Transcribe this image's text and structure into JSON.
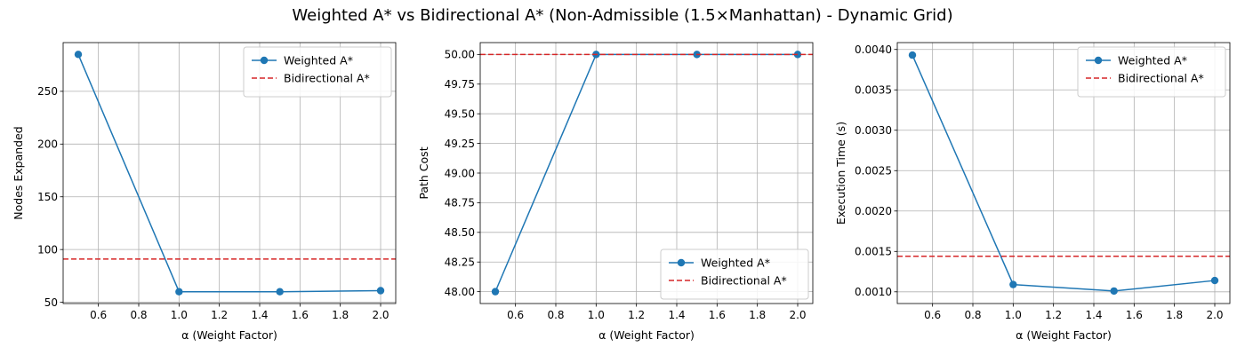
{
  "figure": {
    "title": "Weighted A* vs Bidirectional A* (Non-Admissible (1.5×Manhattan) - Dynamic Grid)"
  },
  "colors": {
    "weighted": "#1f77b4",
    "bidirectional": "#d62728",
    "grid": "#b0b0b0"
  },
  "chart_data": [
    {
      "type": "line",
      "xlabel": "α (Weight Factor)",
      "ylabel": "Nodes Expanded",
      "xlim": [
        0.425,
        2.075
      ],
      "ylim": [
        48.8,
        296.2
      ],
      "xticks": [
        0.6,
        0.8,
        1.0,
        1.2,
        1.4,
        1.6,
        1.8,
        2.0
      ],
      "xtick_labels": [
        "0.6",
        "0.8",
        "1.0",
        "1.2",
        "1.4",
        "1.6",
        "1.8",
        "2.0"
      ],
      "yticks": [
        50,
        100,
        150,
        200,
        250
      ],
      "ytick_labels": [
        "50",
        "100",
        "150",
        "200",
        "250"
      ],
      "grid": true,
      "legend_position": "top-right",
      "series": [
        {
          "name": "Weighted A*",
          "style": "line-marker",
          "x": [
            0.5,
            1.0,
            1.5,
            2.0
          ],
          "y": [
            285,
            60,
            60,
            61
          ]
        },
        {
          "name": "Bidirectional A*",
          "style": "hline-dashed",
          "y": 91
        }
      ]
    },
    {
      "type": "line",
      "xlabel": "α (Weight Factor)",
      "ylabel": "Path Cost",
      "xlim": [
        0.425,
        2.075
      ],
      "ylim": [
        47.9,
        50.1
      ],
      "xticks": [
        0.6,
        0.8,
        1.0,
        1.2,
        1.4,
        1.6,
        1.8,
        2.0
      ],
      "xtick_labels": [
        "0.6",
        "0.8",
        "1.0",
        "1.2",
        "1.4",
        "1.6",
        "1.8",
        "2.0"
      ],
      "yticks": [
        48.0,
        48.25,
        48.5,
        48.75,
        49.0,
        49.25,
        49.5,
        49.75,
        50.0
      ],
      "ytick_labels": [
        "48.00",
        "48.25",
        "48.50",
        "48.75",
        "49.00",
        "49.25",
        "49.50",
        "49.75",
        "50.00"
      ],
      "grid": true,
      "legend_position": "bottom-right",
      "series": [
        {
          "name": "Weighted A*",
          "style": "line-marker",
          "x": [
            0.5,
            1.0,
            1.5,
            2.0
          ],
          "y": [
            48,
            50,
            50,
            50
          ]
        },
        {
          "name": "Bidirectional A*",
          "style": "hline-dashed",
          "y": 50
        }
      ]
    },
    {
      "type": "line",
      "xlabel": "α (Weight Factor)",
      "ylabel": "Execution Time (s)",
      "xlim": [
        0.425,
        2.075
      ],
      "ylim": [
        0.000855,
        0.004085
      ],
      "xticks": [
        0.6,
        0.8,
        1.0,
        1.2,
        1.4,
        1.6,
        1.8,
        2.0
      ],
      "xtick_labels": [
        "0.6",
        "0.8",
        "1.0",
        "1.2",
        "1.4",
        "1.6",
        "1.8",
        "2.0"
      ],
      "yticks": [
        0.001,
        0.0015,
        0.002,
        0.0025,
        0.003,
        0.0035,
        0.004
      ],
      "ytick_labels": [
        "0.0010",
        "0.0015",
        "0.0020",
        "0.0025",
        "0.0030",
        "0.0035",
        "0.0040"
      ],
      "grid": true,
      "legend_position": "top-right",
      "series": [
        {
          "name": "Weighted A*",
          "style": "line-marker",
          "x": [
            0.5,
            1.0,
            1.5,
            2.0
          ],
          "y": [
            0.00393,
            0.00109,
            0.00101,
            0.00114
          ]
        },
        {
          "name": "Bidirectional A*",
          "style": "hline-dashed",
          "y": 0.00144
        }
      ]
    }
  ]
}
